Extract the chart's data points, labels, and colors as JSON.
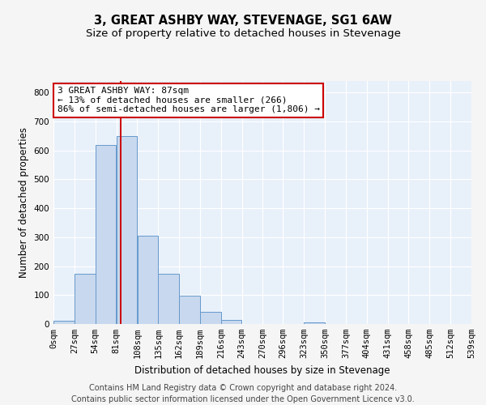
{
  "title": "3, GREAT ASHBY WAY, STEVENAGE, SG1 6AW",
  "subtitle": "Size of property relative to detached houses in Stevenage",
  "xlabel": "Distribution of detached houses by size in Stevenage",
  "ylabel": "Number of detached properties",
  "bar_color": "#c8d8ee",
  "bar_edge_color": "#6699cc",
  "background_color": "#e8f0fa",
  "grid_color": "#ffffff",
  "property_line_x": 87,
  "property_line_color": "#cc0000",
  "annotation_line1": "3 GREAT ASHBY WAY: 87sqm",
  "annotation_line2": "← 13% of detached houses are smaller (266)",
  "annotation_line3": "86% of semi-detached houses are larger (1,806) →",
  "bin_edges": [
    0,
    27,
    54,
    81,
    108,
    135,
    162,
    189,
    216,
    243,
    270,
    296,
    323,
    350,
    377,
    404,
    431,
    458,
    485,
    512,
    539
  ],
  "bin_counts": [
    10,
    175,
    620,
    650,
    305,
    175,
    97,
    43,
    13,
    0,
    0,
    0,
    5,
    0,
    0,
    0,
    0,
    0,
    0,
    0
  ],
  "ylim": [
    0,
    840
  ],
  "yticks": [
    0,
    100,
    200,
    300,
    400,
    500,
    600,
    700,
    800
  ],
  "tick_labels": [
    "0sqm",
    "27sqm",
    "54sqm",
    "81sqm",
    "108sqm",
    "135sqm",
    "162sqm",
    "189sqm",
    "216sqm",
    "243sqm",
    "270sqm",
    "296sqm",
    "323sqm",
    "350sqm",
    "377sqm",
    "404sqm",
    "431sqm",
    "458sqm",
    "485sqm",
    "512sqm",
    "539sqm"
  ],
  "footer_text": "Contains HM Land Registry data © Crown copyright and database right 2024.\nContains public sector information licensed under the Open Government Licence v3.0.",
  "fig_bg": "#f5f5f5",
  "title_fontsize": 10.5,
  "subtitle_fontsize": 9.5,
  "axis_label_fontsize": 8.5,
  "tick_fontsize": 7.5,
  "annotation_fontsize": 8,
  "footer_fontsize": 7
}
